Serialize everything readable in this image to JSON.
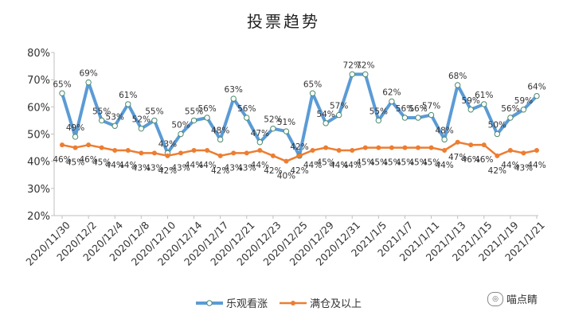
{
  "chart_data": {
    "type": "line",
    "title": "投票趋势",
    "xlabel": "",
    "ylabel": "",
    "ylim": [
      20,
      80
    ],
    "yticks": [
      "20%",
      "30%",
      "40%",
      "50%",
      "60%",
      "70%",
      "80%"
    ],
    "grid": false,
    "legend_position": "bottom",
    "x_tick_labels": [
      "2020/11/30",
      "2020/12/2",
      "2020/12/4",
      "2020/12/8",
      "2020/12/10",
      "2020/12/14",
      "2020/12/17",
      "2020/12/21",
      "2020/12/23",
      "2020/12/25",
      "2020/12/29",
      "2020/12/31",
      "2021/1/5",
      "2021/1/7",
      "2021/1/11",
      "2021/1/13",
      "2021/1/15",
      "2021/1/19",
      "2021/1/21"
    ],
    "series": [
      {
        "name": "乐观看涨",
        "color": "#5B9BD5",
        "values": [
          65,
          49,
          69,
          55,
          53,
          61,
          52,
          55,
          43,
          50,
          55,
          56,
          48,
          63,
          56,
          47,
          52,
          51,
          42,
          65,
          54,
          57,
          72,
          72,
          55,
          62,
          56,
          56,
          57,
          48,
          68,
          59,
          61,
          50,
          56,
          59,
          64
        ]
      },
      {
        "name": "满仓及以上",
        "color": "#ED7D31",
        "values": [
          46,
          45,
          46,
          45,
          44,
          44,
          43,
          43,
          42,
          43,
          44,
          44,
          42,
          43,
          43,
          44,
          42,
          40,
          42,
          44,
          45,
          44,
          44,
          45,
          45,
          45,
          45,
          45,
          45,
          44,
          47,
          46,
          46,
          42,
          44,
          43,
          44
        ]
      }
    ]
  },
  "watermark": {
    "text": "喵点睛",
    "icon": "wechat-icon"
  }
}
